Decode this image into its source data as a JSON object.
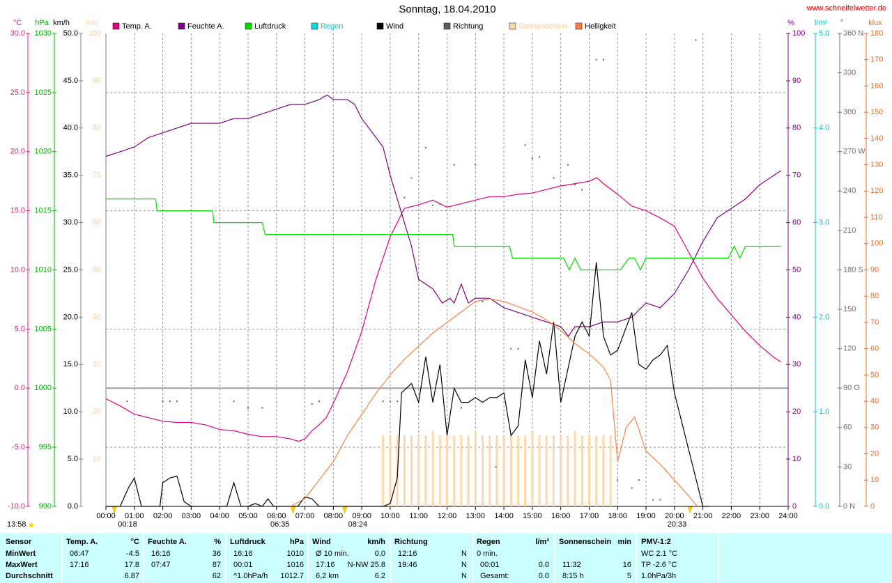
{
  "chart_data": {
    "type": "line",
    "title": "Sonntag, 18.04.2010",
    "site": "www.schneifelwetter.de",
    "day_length": "13:58",
    "grid": true,
    "xlim": [
      0,
      24
    ],
    "xticks": [
      {
        "value": 0,
        "label": "00:00"
      },
      {
        "value": 1,
        "label": "01:00"
      },
      {
        "value": 2,
        "label": "02:00"
      },
      {
        "value": 3,
        "label": "03:00"
      },
      {
        "value": 4,
        "label": "04:00"
      },
      {
        "value": 5,
        "label": "05:00"
      },
      {
        "value": 6,
        "label": "06:00"
      },
      {
        "value": 7,
        "label": "07:00"
      },
      {
        "value": 8,
        "label": "08:00"
      },
      {
        "value": 9,
        "label": "09:00"
      },
      {
        "value": 10,
        "label": "10:00"
      },
      {
        "value": 11,
        "label": "11:00"
      },
      {
        "value": 12,
        "label": "12:00"
      },
      {
        "value": 13,
        "label": "13:00"
      },
      {
        "value": 14,
        "label": "14:00"
      },
      {
        "value": 15,
        "label": "15:00"
      },
      {
        "value": 16,
        "label": "16:00"
      },
      {
        "value": 17,
        "label": "17:00"
      },
      {
        "value": 18,
        "label": "18:00"
      },
      {
        "value": 19,
        "label": "19:00"
      },
      {
        "value": 20,
        "label": "20:00"
      },
      {
        "value": 21,
        "label": "21:00"
      },
      {
        "value": 22,
        "label": "22:00"
      },
      {
        "value": 23,
        "label": "23:00"
      },
      {
        "value": 24,
        "label": "24:00"
      }
    ],
    "markers": [
      {
        "value": 0.3,
        "label": "00:18"
      },
      {
        "value": 6.5833,
        "label": "06:35"
      },
      {
        "value": 8.4,
        "label": "08:24"
      },
      {
        "value": 20.55,
        "label": "20:33"
      }
    ],
    "axes": [
      {
        "label": "°C",
        "color": "#e0207f",
        "lim": [
          -10,
          30
        ],
        "ticks": [
          {
            "value": -10,
            "label": "-10.0"
          },
          {
            "value": -5,
            "label": "-5.0"
          },
          {
            "value": 0,
            "label": "0.0"
          },
          {
            "value": 5,
            "label": "5.0"
          },
          {
            "value": 10,
            "label": "10.0"
          },
          {
            "value": 15,
            "label": "15.0"
          },
          {
            "value": 20,
            "label": "20.0"
          },
          {
            "value": 25,
            "label": "25.0"
          },
          {
            "value": 30,
            "label": "30.0"
          }
        ]
      },
      {
        "label": "hPa",
        "color": "#00b000",
        "lim": [
          990,
          1030
        ],
        "ticks": [
          990,
          995,
          1000,
          1005,
          1010,
          1015,
          1020,
          1025,
          1030
        ]
      },
      {
        "label": "km/h",
        "color": "#000000",
        "lim": [
          0,
          50
        ],
        "ticks": [
          {
            "value": 0,
            "label": "0.0"
          },
          {
            "value": 5,
            "label": "5.0"
          },
          {
            "value": 10,
            "label": "10.0"
          },
          {
            "value": 15,
            "label": "15.0"
          },
          {
            "value": 20,
            "label": "20.0"
          },
          {
            "value": 25,
            "label": "25.0"
          },
          {
            "value": 30,
            "label": "30.0"
          },
          {
            "value": 35,
            "label": "35.0"
          },
          {
            "value": 40,
            "label": "40.0"
          },
          {
            "value": 45,
            "label": "45.0"
          },
          {
            "value": 50,
            "label": "50.0"
          }
        ]
      },
      {
        "label": "min",
        "color": "#ffcc99",
        "lim": [
          0,
          100
        ],
        "ticks": [
          10,
          20,
          30,
          40,
          50,
          60,
          70,
          80,
          90,
          100
        ]
      },
      {
        "label": "%",
        "color": "#800080",
        "lim": [
          0,
          100
        ],
        "ticks": [
          0,
          10,
          20,
          30,
          40,
          50,
          60,
          70,
          80,
          90,
          100
        ]
      },
      {
        "label": "l/m²",
        "color": "#00c8c8",
        "lim": [
          0,
          5
        ],
        "ticks": [
          {
            "value": 0,
            "label": "0.0"
          },
          {
            "value": 1,
            "label": "1.0"
          },
          {
            "value": 2,
            "label": "2.0"
          },
          {
            "value": 3,
            "label": "3.0"
          },
          {
            "value": 4,
            "label": "4.0"
          },
          {
            "value": 5,
            "label": "5.0"
          }
        ]
      },
      {
        "label": "°",
        "color": "#707070",
        "lim": [
          0,
          360
        ],
        "ticks": [
          {
            "value": 0,
            "label": "0 N"
          },
          30,
          60,
          {
            "value": 90,
            "label": "90 O"
          },
          120,
          150,
          {
            "value": 180,
            "label": "180 S"
          },
          210,
          240,
          {
            "value": 270,
            "label": "270 W"
          },
          300,
          330,
          {
            "value": 360,
            "label": "360 N"
          }
        ]
      },
      {
        "label": "klux",
        "color": "#e07030",
        "lim": [
          0,
          180
        ],
        "ticks": [
          0,
          10,
          20,
          30,
          40,
          50,
          60,
          70,
          80,
          90,
          100,
          110,
          120,
          130,
          140,
          150,
          160,
          170,
          180
        ]
      }
    ],
    "series": [
      {
        "name": "Temp. A.",
        "color": "#e0007f",
        "axis": "°C",
        "type": "line",
        "x": [
          0,
          0.5,
          1,
          1.5,
          2,
          2.5,
          3,
          3.5,
          4,
          4.5,
          5,
          5.5,
          6,
          6.5,
          6.78,
          7,
          7.25,
          7.5,
          7.75,
          8,
          8.5,
          9,
          9.5,
          10,
          10.5,
          11,
          11.5,
          12,
          12.5,
          13,
          13.5,
          14,
          14.5,
          15,
          15.5,
          16,
          16.5,
          17,
          17.27,
          17.5,
          18,
          18.5,
          19,
          19.5,
          20,
          20.5,
          21,
          21.5,
          22,
          22.5,
          23,
          23.5,
          23.75
        ],
        "values": [
          -0.9,
          -1.5,
          -2.2,
          -2.5,
          -2.8,
          -2.9,
          -2.9,
          -3.1,
          -3.5,
          -3.6,
          -3.9,
          -4.1,
          -4.1,
          -4.3,
          -4.5,
          -4.3,
          -3.6,
          -3.1,
          -2.5,
          -1.3,
          1.4,
          4.8,
          9.2,
          12.8,
          15.2,
          15.5,
          15.9,
          15.3,
          15.6,
          15.9,
          16.2,
          16.2,
          16.4,
          16.5,
          16.8,
          17.1,
          17.3,
          17.5,
          17.8,
          17.3,
          16.4,
          15.4,
          15.0,
          14.4,
          13.7,
          11.5,
          9.3,
          7.6,
          6.2,
          4.8,
          3.6,
          2.6,
          2.2
        ]
      },
      {
        "name": "Feuchte A.",
        "color": "#800080",
        "axis": "%",
        "type": "line",
        "x": [
          0,
          0.5,
          1,
          1.5,
          2,
          2.5,
          3,
          4,
          4.5,
          5,
          5.5,
          6,
          6.5,
          7,
          7.5,
          7.78,
          8,
          8.5,
          8.75,
          9,
          9.5,
          9.75,
          10,
          10.25,
          10.5,
          10.75,
          11,
          11.5,
          11.83,
          12.1,
          12.25,
          12.5,
          12.75,
          13,
          13.5,
          14,
          14.5,
          15,
          15.5,
          16,
          16.27,
          16.5,
          17,
          17.5,
          18,
          18.5,
          19,
          19.5,
          20,
          20.5,
          21,
          21.5,
          22,
          22.5,
          23,
          23.5,
          23.75
        ],
        "values": [
          74,
          75,
          76,
          78,
          79,
          80,
          81,
          81,
          82,
          82,
          83,
          84,
          85,
          85,
          86,
          87,
          86,
          86,
          85,
          82,
          78,
          76,
          70,
          65,
          60,
          55,
          48,
          46,
          43,
          44,
          43,
          47,
          43,
          44,
          44,
          42,
          41,
          40,
          39,
          38,
          36,
          38,
          38,
          39,
          39,
          40,
          43,
          42,
          45,
          50,
          56,
          61,
          63,
          65,
          68,
          70,
          71
        ]
      },
      {
        "name": "Luftdruck",
        "color": "#00dd00",
        "axis": "hPa",
        "type": "line",
        "x": [
          0,
          1.75,
          1.8,
          3.75,
          3.8,
          5.5,
          5.6,
          12.2,
          12.25,
          14.2,
          14.3,
          16.1,
          16.3,
          16.5,
          16.7,
          18.1,
          18.4,
          18.6,
          18.8,
          19,
          21.9,
          22.1,
          22.3,
          22.5,
          23.75
        ],
        "values": [
          1016,
          1016,
          1015,
          1015,
          1014,
          1014,
          1013,
          1013,
          1012,
          1012,
          1011,
          1011,
          1010,
          1011,
          1010,
          1010,
          1011,
          1011,
          1010,
          1011,
          1011,
          1012,
          1011,
          1012,
          1012
        ]
      },
      {
        "name": "Regen",
        "color": "#00e0e0",
        "axis": "l/m²",
        "type": "line",
        "label_color": "#00c8c8"
      },
      {
        "name": "Wind",
        "color": "#000000",
        "axis": "km/h",
        "type": "line",
        "x": [
          0,
          0.5,
          0.8,
          1,
          1.25,
          1.9,
          2,
          2.25,
          2.5,
          2.75,
          3,
          4.25,
          4.5,
          4.75,
          5,
          5.25,
          5.5,
          5.7,
          5.9,
          6.75,
          7,
          7.25,
          7.5,
          9.75,
          10,
          10.25,
          10.4,
          10.75,
          11,
          11.25,
          11.5,
          11.75,
          12,
          12.25,
          12.5,
          12.75,
          13,
          13.25,
          13.5,
          13.75,
          14,
          14.25,
          14.5,
          14.75,
          15,
          15.25,
          15.5,
          15.75,
          16,
          16.5,
          16.75,
          17,
          17.25,
          17.5,
          17.75,
          18,
          18.5,
          18.75,
          19,
          19.25,
          19.5,
          19.75,
          20,
          20.5,
          21,
          21.25
        ],
        "values": [
          0,
          0,
          2,
          3,
          0,
          0,
          2.5,
          3,
          3.2,
          0.5,
          0,
          0,
          2.5,
          0,
          0,
          0.3,
          0,
          0.8,
          0,
          0,
          1,
          0.8,
          0,
          0,
          0.3,
          3,
          12,
          13,
          11,
          15.8,
          11,
          15,
          7.5,
          12.5,
          11,
          11,
          11.5,
          11,
          11.5,
          11.5,
          12,
          7.5,
          8.5,
          15.5,
          11.5,
          17.5,
          14,
          19.5,
          11,
          18,
          19.5,
          18,
          25.8,
          18,
          16,
          16.5,
          20.5,
          15,
          14.5,
          15.5,
          16,
          17,
          12,
          6,
          0,
          0
        ]
      },
      {
        "name": "Richtung",
        "color": "#606060",
        "axis": "°",
        "type": "scatter",
        "x": [
          0.75,
          2,
          2.25,
          2.5,
          4.5,
          5,
          5.5,
          7.25,
          7.5,
          9.75,
          10,
          10.25,
          10.5,
          10.75,
          11.25,
          11.5,
          11.75,
          12.25,
          12.5,
          13,
          13.25,
          13.72,
          14.25,
          14.5,
          14.75,
          15,
          15.25,
          15.75,
          16.25,
          16.5,
          16.75,
          17.25,
          17.5,
          18,
          18.5,
          18.75,
          19.25,
          19.5,
          20.75
        ],
        "values": [
          80,
          80,
          80,
          80,
          80,
          75,
          75,
          78,
          80,
          80,
          80,
          80,
          235,
          250,
          273,
          229,
          230,
          260,
          75,
          260,
          156,
          30,
          120,
          120,
          275,
          265,
          266,
          250,
          260,
          245,
          241,
          340,
          340,
          20,
          14,
          20,
          5,
          5,
          355
        ]
      },
      {
        "name": "Sonnenschein",
        "color": "#ffd8a8",
        "axis": "min",
        "type": "bar",
        "label_color": "#ffcc99",
        "x": [
          9.75,
          10,
          10.25,
          10.5,
          10.75,
          11,
          11.25,
          11.5,
          11.75,
          12,
          12.25,
          12.5,
          12.75,
          13,
          13.25,
          13.5,
          13.75,
          14,
          14.25,
          14.5,
          14.75,
          15,
          15.25,
          15.5,
          15.75,
          16,
          16.25,
          16.5,
          16.75,
          17,
          17.25,
          17.5,
          17.75
        ],
        "values": [
          15,
          15,
          15,
          15,
          15,
          15,
          15,
          16,
          15,
          15,
          15,
          15,
          15,
          16,
          15,
          15,
          15,
          15,
          15,
          15,
          15,
          16,
          15,
          15,
          15,
          15,
          15,
          16,
          15,
          15,
          15,
          15,
          15
        ]
      },
      {
        "name": "Helligkeit",
        "color": "#ff8040",
        "axis": "klux",
        "type": "line",
        "x": [
          6.5,
          7,
          7.5,
          8,
          8.5,
          9,
          9.5,
          10,
          10.5,
          11,
          11.5,
          12,
          12.5,
          13,
          13.5,
          14,
          14.5,
          15,
          15.5,
          16,
          16.5,
          17,
          17.5,
          17.75,
          18,
          18.3,
          18.6,
          19,
          19.5,
          20,
          20.5,
          20.8
        ],
        "values": [
          0,
          3,
          10,
          17,
          27,
          35,
          43,
          50,
          56,
          61,
          66,
          70,
          74,
          78,
          79,
          78,
          76,
          74,
          71,
          67,
          62,
          58,
          53,
          48,
          17,
          30,
          34,
          21,
          16,
          10,
          4,
          0
        ]
      }
    ]
  },
  "table": {
    "header": [
      "Sensor",
      {
        "left": "Temp. A.",
        "right": "°C"
      },
      {
        "left": "Feuchte A.",
        "right": "%"
      },
      {
        "left": "Luftdruck",
        "right": "hPa"
      },
      {
        "left": "Wind",
        "right": "km/h"
      },
      "Richtung",
      {
        "left": "Regen",
        "right": "l/m²"
      },
      {
        "left": "Sonnenschein",
        "right": "min"
      },
      "PMV-1:2"
    ],
    "rows": [
      [
        "MinWert",
        {
          "left": "06:47",
          "right": "-4.5"
        },
        {
          "left": "16:16",
          "right": "36"
        },
        {
          "left": "16:16",
          "right": "1010"
        },
        {
          "left": "Ø 10 min.",
          "right": "0.0"
        },
        {
          "left": "12:16",
          "right": "N"
        },
        "0 min.",
        null,
        "WC 2.1 °C"
      ],
      [
        "MaxWert",
        {
          "left": "17:16",
          "right": "17.8"
        },
        {
          "left": "07:47",
          "right": "87"
        },
        {
          "left": "00:01",
          "right": "1016"
        },
        {
          "left": "17:16",
          "right": "N-NW 25.8"
        },
        {
          "left": "19:46",
          "right": "N"
        },
        {
          "left": "00:01",
          "right": "0.0"
        },
        {
          "left": "11:32",
          "right": "16"
        },
        "TP -2.6 °C"
      ],
      [
        "Durchschnitt",
        {
          "right": "6.87"
        },
        {
          "right": "62"
        },
        {
          "left": "^1.0hPa/h",
          "right": "1012.7"
        },
        {
          "left": "6,2 km",
          "right": "6.2"
        },
        {
          "right": "N"
        },
        {
          "left": "Gesamt:",
          "right": "0.0"
        },
        {
          "left": "8:15 h",
          "right": "5"
        },
        "1.0hPa/3h"
      ]
    ]
  }
}
